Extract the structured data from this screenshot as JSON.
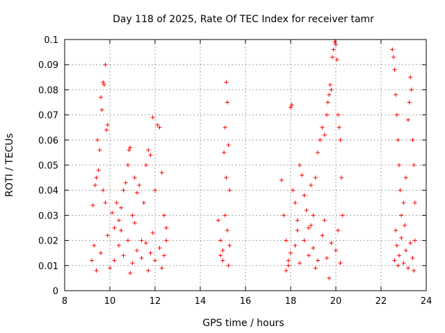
{
  "chart_data": {
    "type": "scatter",
    "title": "Day 118 of 2025, Rate Of TEC Index for receiver tamr",
    "xlabel": "GPS time / hours",
    "ylabel": "ROTI / TECUs",
    "xlim": [
      8,
      24
    ],
    "ylim": [
      0,
      0.1
    ],
    "grid": true,
    "xticks": [
      "8",
      "10",
      "12",
      "14",
      "16",
      "18",
      "20",
      "22",
      "24"
    ],
    "yticks": [
      "0",
      "0.01",
      "0.02",
      "0.03",
      "0.04",
      "0.05",
      "0.06",
      "0.07",
      "0.08",
      "0.09",
      "0.1"
    ],
    "marker": "+",
    "color": "#ff0000",
    "series": [
      {
        "name": "ROTI",
        "points": [
          [
            9.2,
            0.012
          ],
          [
            9.3,
            0.018
          ],
          [
            9.4,
            0.045
          ],
          [
            9.45,
            0.06
          ],
          [
            9.5,
            0.048
          ],
          [
            9.6,
            0.077
          ],
          [
            9.65,
            0.072
          ],
          [
            9.7,
            0.083
          ],
          [
            9.75,
            0.082
          ],
          [
            9.8,
            0.09
          ],
          [
            9.85,
            0.064
          ],
          [
            9.9,
            0.066
          ],
          [
            9.35,
            0.042
          ],
          [
            9.25,
            0.034
          ],
          [
            9.55,
            0.056
          ],
          [
            9.7,
            0.04
          ],
          [
            9.8,
            0.035
          ],
          [
            9.4,
            0.008
          ],
          [
            9.6,
            0.015
          ],
          [
            9.9,
            0.022
          ],
          [
            10.1,
            0.031
          ],
          [
            10.2,
            0.025
          ],
          [
            10.3,
            0.035
          ],
          [
            10.4,
            0.028
          ],
          [
            10.5,
            0.033
          ],
          [
            10.6,
            0.04
          ],
          [
            10.7,
            0.043
          ],
          [
            10.8,
            0.05
          ],
          [
            10.85,
            0.056
          ],
          [
            10.9,
            0.057
          ],
          [
            11.0,
            0.03
          ],
          [
            11.1,
            0.045
          ],
          [
            11.2,
            0.039
          ],
          [
            11.3,
            0.042
          ],
          [
            11.4,
            0.02
          ],
          [
            11.5,
            0.035
          ],
          [
            11.6,
            0.05
          ],
          [
            11.7,
            0.056
          ],
          [
            11.8,
            0.054
          ],
          [
            11.9,
            0.069
          ],
          [
            12.0,
            0.04
          ],
          [
            12.1,
            0.066
          ],
          [
            12.2,
            0.065
          ],
          [
            12.3,
            0.047
          ],
          [
            12.4,
            0.03
          ],
          [
            12.5,
            0.025
          ],
          [
            10.2,
            0.012
          ],
          [
            10.4,
            0.018
          ],
          [
            10.6,
            0.014
          ],
          [
            10.8,
            0.02
          ],
          [
            11.0,
            0.011
          ],
          [
            11.2,
            0.016
          ],
          [
            11.4,
            0.013
          ],
          [
            11.6,
            0.019
          ],
          [
            11.8,
            0.015
          ],
          [
            12.0,
            0.012
          ],
          [
            12.2,
            0.017
          ],
          [
            12.4,
            0.014
          ],
          [
            10.0,
            0.009
          ],
          [
            10.9,
            0.007
          ],
          [
            11.7,
            0.008
          ],
          [
            12.3,
            0.009
          ],
          [
            10.5,
            0.024
          ],
          [
            11.1,
            0.027
          ],
          [
            11.9,
            0.023
          ],
          [
            12.5,
            0.02
          ],
          [
            14.8,
            0.028
          ],
          [
            14.9,
            0.02
          ],
          [
            15.0,
            0.016
          ],
          [
            15.05,
            0.055
          ],
          [
            15.1,
            0.065
          ],
          [
            15.15,
            0.083
          ],
          [
            15.2,
            0.075
          ],
          [
            15.25,
            0.058
          ],
          [
            15.3,
            0.04
          ],
          [
            15.1,
            0.03
          ],
          [
            15.2,
            0.024
          ],
          [
            15.0,
            0.012
          ],
          [
            15.3,
            0.018
          ],
          [
            15.15,
            0.045
          ],
          [
            14.9,
            0.014
          ],
          [
            15.25,
            0.01
          ],
          [
            17.6,
            0.044
          ],
          [
            17.7,
            0.03
          ],
          [
            17.8,
            0.02
          ],
          [
            17.9,
            0.012
          ],
          [
            18.0,
            0.073
          ],
          [
            18.05,
            0.074
          ],
          [
            18.1,
            0.04
          ],
          [
            18.2,
            0.035
          ],
          [
            18.3,
            0.028
          ],
          [
            18.4,
            0.05
          ],
          [
            18.5,
            0.046
          ],
          [
            18.6,
            0.038
          ],
          [
            18.7,
            0.032
          ],
          [
            18.8,
            0.025
          ],
          [
            18.9,
            0.042
          ],
          [
            19.0,
            0.03
          ],
          [
            19.1,
            0.045
          ],
          [
            19.2,
            0.055
          ],
          [
            19.3,
            0.06
          ],
          [
            19.4,
            0.065
          ],
          [
            19.5,
            0.062
          ],
          [
            19.6,
            0.07
          ],
          [
            19.65,
            0.075
          ],
          [
            19.7,
            0.078
          ],
          [
            19.75,
            0.082
          ],
          [
            19.8,
            0.08
          ],
          [
            19.85,
            0.093
          ],
          [
            19.9,
            0.096
          ],
          [
            19.95,
            0.099
          ],
          [
            20.0,
            0.098
          ],
          [
            20.05,
            0.092
          ],
          [
            20.1,
            0.07
          ],
          [
            20.15,
            0.065
          ],
          [
            20.2,
            0.06
          ],
          [
            20.25,
            0.045
          ],
          [
            20.3,
            0.03
          ],
          [
            17.8,
            0.008
          ],
          [
            18.0,
            0.015
          ],
          [
            18.2,
            0.018
          ],
          [
            18.4,
            0.011
          ],
          [
            18.6,
            0.02
          ],
          [
            18.8,
            0.014
          ],
          [
            19.0,
            0.017
          ],
          [
            19.2,
            0.012
          ],
          [
            19.4,
            0.022
          ],
          [
            19.6,
            0.013
          ],
          [
            19.7,
            0.005
          ],
          [
            19.8,
            0.019
          ],
          [
            20.0,
            0.016
          ],
          [
            20.2,
            0.011
          ],
          [
            18.3,
            0.024
          ],
          [
            18.9,
            0.026
          ],
          [
            19.5,
            0.028
          ],
          [
            20.1,
            0.024
          ],
          [
            17.9,
            0.01
          ],
          [
            19.1,
            0.009
          ],
          [
            22.5,
            0.096
          ],
          [
            22.55,
            0.093
          ],
          [
            22.6,
            0.088
          ],
          [
            22.65,
            0.078
          ],
          [
            22.7,
            0.07
          ],
          [
            22.75,
            0.06
          ],
          [
            22.8,
            0.05
          ],
          [
            22.85,
            0.04
          ],
          [
            22.9,
            0.03
          ],
          [
            23.0,
            0.035
          ],
          [
            23.1,
            0.045
          ],
          [
            23.2,
            0.068
          ],
          [
            23.25,
            0.075
          ],
          [
            23.3,
            0.085
          ],
          [
            23.35,
            0.08
          ],
          [
            23.4,
            0.06
          ],
          [
            23.45,
            0.05
          ],
          [
            23.5,
            0.035
          ],
          [
            22.6,
            0.012
          ],
          [
            22.7,
            0.018
          ],
          [
            22.8,
            0.014
          ],
          [
            22.9,
            0.021
          ],
          [
            23.0,
            0.011
          ],
          [
            23.1,
            0.016
          ],
          [
            23.2,
            0.009
          ],
          [
            23.3,
            0.019
          ],
          [
            23.4,
            0.013
          ],
          [
            23.5,
            0.02
          ],
          [
            22.65,
            0.024
          ],
          [
            23.05,
            0.026
          ],
          [
            23.45,
            0.008
          ],
          [
            22.75,
            0.01
          ]
        ]
      }
    ]
  }
}
